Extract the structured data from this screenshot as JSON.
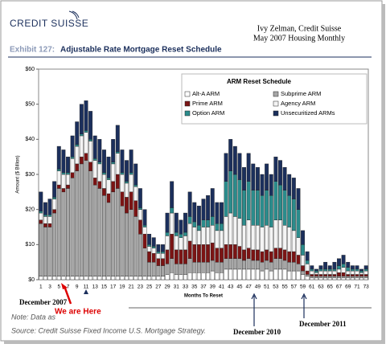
{
  "chart_data": {
    "type": "stacked_bar",
    "logo": "CREDIT SUISSE",
    "author": "Ivy Zelman, Credit Suisse",
    "publication": "May 2007 Housing Monthly",
    "exhibit": "Exhibit 127:",
    "title": "Adjustable Rate Mortgage Reset Schedule",
    "ylabel": "Amount ($ Billion)",
    "xlabel": "Months To Reset",
    "legend_title": "ARM Reset Schedule",
    "annotations": [
      "December 2007",
      "We are Here",
      "December 2010",
      "December 2011"
    ],
    "note": "Note: Data as",
    "source": "Source: Credit Suisse Fixed Income U.S. Mortgage Strategy.",
    "ylim": [
      0,
      60
    ],
    "yticks": [
      {
        "value": 0,
        "label": "$0"
      },
      {
        "value": 10,
        "label": "$10"
      },
      {
        "value": 20,
        "label": "$20"
      },
      {
        "value": 30,
        "label": "$30"
      },
      {
        "value": 40,
        "label": "$40"
      },
      {
        "value": 50,
        "label": "$50"
      },
      {
        "value": 60,
        "label": "$60"
      }
    ],
    "categories": [
      1,
      null,
      3,
      null,
      5,
      null,
      7,
      null,
      9,
      null,
      11,
      null,
      13,
      null,
      15,
      null,
      17,
      null,
      19,
      null,
      21,
      null,
      23,
      null,
      25,
      null,
      27,
      null,
      29,
      null,
      31,
      null,
      33,
      null,
      35,
      null,
      37,
      null,
      39,
      null,
      41,
      null,
      43,
      null,
      45,
      null,
      47,
      null,
      49,
      null,
      51,
      null,
      53,
      null,
      55,
      null,
      57,
      null,
      59,
      null,
      61,
      null,
      63,
      null,
      65,
      null,
      67,
      null,
      69,
      null,
      71,
      null,
      73
    ],
    "series": [
      {
        "name": "Alt-A ARM",
        "color": "#ffffff",
        "values": [
          1,
          1,
          1,
          1,
          1,
          1,
          1,
          1,
          1,
          1,
          1,
          1,
          1,
          1,
          1,
          1,
          1,
          1,
          1,
          1,
          1,
          1,
          1,
          1,
          1,
          1,
          1,
          1,
          1.5,
          2,
          1.5,
          1.5,
          1.5,
          2,
          2,
          2,
          2,
          2,
          2.5,
          2,
          2,
          3,
          3,
          3,
          3,
          3,
          3,
          3,
          3,
          2.5,
          3,
          2.5,
          3,
          3,
          3,
          2.5,
          2.5,
          2.5,
          1.5,
          1,
          0.5,
          0.5,
          0.5,
          0.5,
          0.5,
          0.5,
          0.5,
          0.5,
          0.5,
          0.5,
          0.5,
          0.5,
          0.5
        ]
      },
      {
        "name": "Subprime ARM",
        "color": "#a6a6a6",
        "values": [
          15,
          14,
          14,
          18,
          25,
          24,
          25,
          28,
          30,
          32,
          33,
          30,
          26,
          25,
          23,
          21,
          24,
          25,
          20,
          18,
          19,
          17,
          12,
          8,
          4,
          4,
          3,
          3,
          3,
          4,
          3,
          3,
          3,
          4,
          3,
          3,
          3,
          3,
          3,
          3,
          3,
          3,
          3,
          3,
          3,
          2.5,
          3,
          2.5,
          2.5,
          2.5,
          2.5,
          2.5,
          3,
          3,
          2.5,
          2.5,
          2.5,
          2,
          1,
          0.5,
          0.5,
          0.5,
          0.5,
          0.5,
          0.5,
          0.5,
          0.5,
          0.5,
          0.5,
          0.5,
          0.5,
          0.5,
          0.5
        ]
      },
      {
        "name": "Prime ARM",
        "color": "#7b1414",
        "values": [
          1,
          1,
          1,
          1,
          1,
          1,
          1,
          1.5,
          2,
          2,
          2,
          2.5,
          2,
          2,
          2,
          2.5,
          3,
          4,
          4,
          4.5,
          5,
          4.5,
          4,
          4,
          3,
          2.5,
          2,
          2,
          4,
          7,
          4,
          4,
          4,
          5,
          5,
          5,
          5,
          5,
          5,
          4,
          4,
          4,
          4,
          4,
          3.5,
          3,
          3,
          3,
          3,
          3,
          3,
          3,
          3,
          3,
          3,
          3,
          3,
          2.5,
          1.5,
          1,
          0.5,
          0.5,
          0.5,
          0.5,
          0.5,
          0.5,
          1,
          1,
          0.5,
          0.5,
          0.5,
          0.5,
          0.5
        ]
      },
      {
        "name": "Agency ARM",
        "color": "#f4f4f4",
        "values": [
          2,
          2,
          2,
          3,
          4,
          4,
          3,
          4,
          5,
          6,
          6,
          6,
          5,
          5,
          4,
          4,
          5,
          6,
          5,
          4,
          5,
          4,
          3,
          2,
          1.5,
          1.5,
          1.5,
          1.5,
          4,
          6,
          4,
          3.5,
          4,
          5,
          5,
          4,
          5,
          5,
          5,
          5,
          5,
          8,
          9,
          8,
          8,
          7,
          8,
          7,
          7,
          7,
          7,
          7,
          8,
          8,
          7,
          7,
          6,
          5,
          3,
          2,
          1,
          0.5,
          1,
          1,
          1,
          1,
          1,
          1.5,
          1,
          1,
          1,
          0.5,
          1
        ]
      },
      {
        "name": "Option ARM",
        "color": "#2b8c8c",
        "values": [
          0.5,
          0.5,
          0.5,
          0.5,
          0.5,
          0.5,
          0.5,
          0.5,
          0.5,
          0.5,
          0.5,
          0.5,
          0.5,
          0.5,
          0.5,
          0.5,
          0.5,
          0.5,
          0.5,
          0.5,
          0.5,
          0.5,
          0.5,
          0.5,
          0.5,
          0.5,
          0.5,
          0.5,
          1,
          1.5,
          1,
          1,
          1,
          2,
          1.5,
          1.5,
          2,
          2,
          2.5,
          2,
          2,
          10,
          12,
          12,
          11,
          10,
          11,
          10,
          10,
          9,
          10,
          9,
          11,
          10,
          10,
          9,
          9,
          8,
          3,
          1,
          0.5,
          0.5,
          0.5,
          0.5,
          0.5,
          0.5,
          1,
          1,
          1,
          0.5,
          0.5,
          0.5,
          0.5
        ]
      },
      {
        "name": "Unsecuritized ARMs",
        "color": "#1b2f5c",
        "values": [
          5.5,
          3.5,
          4.5,
          4.5,
          6.5,
          6.5,
          4.5,
          6,
          6.5,
          8.5,
          8.5,
          8,
          6.5,
          6.5,
          6.5,
          6,
          6.5,
          7.5,
          6.5,
          6,
          6.5,
          6,
          5.5,
          4.5,
          3,
          2.5,
          2,
          2,
          5.5,
          7.5,
          5.5,
          4,
          5.5,
          7,
          5.5,
          5.5,
          6,
          7,
          8,
          6,
          6,
          8,
          9,
          8,
          7.5,
          6.5,
          8,
          7.5,
          6.5,
          6,
          7.5,
          6,
          7,
          7,
          6.5,
          6,
          6,
          6,
          4,
          2.5,
          1,
          0.5,
          1,
          2,
          1,
          2,
          2,
          2.5,
          1.5,
          1,
          1,
          0.5,
          1
        ]
      }
    ]
  }
}
